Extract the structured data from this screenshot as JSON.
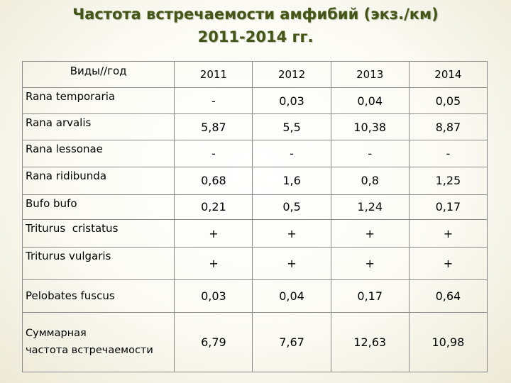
{
  "title": {
    "line1": "Частота встречаемости амфибий (экз./км)",
    "line2": "2011-2014 гг."
  },
  "table": {
    "header": {
      "species_label": "Виды//год",
      "years": [
        "2011",
        "2012",
        "2013",
        "2014"
      ]
    },
    "rows": [
      {
        "species": "Rana temporaria",
        "values": [
          "-",
          "0,03",
          "0,04",
          "0,05"
        ]
      },
      {
        "species": "Rana arvalis",
        "values": [
          "5,87",
          "5,5",
          "10,38",
          "8,87"
        ]
      },
      {
        "species": "Rana lessonae",
        "values": [
          "-",
          "-",
          "-",
          "-"
        ]
      },
      {
        "species": "Rana ridibunda",
        "values": [
          "0,68",
          "1,6",
          "0,8",
          "1,25"
        ]
      },
      {
        "species": "Bufo bufo",
        "values": [
          "0,21",
          "0,5",
          "1,24",
          "0,17"
        ]
      },
      {
        "species": "Triturus  cristatus",
        "values": [
          "+",
          "+",
          "+",
          "+"
        ]
      },
      {
        "species": "Triturus vulgaris",
        "values": [
          "+",
          "+",
          "+",
          "+"
        ]
      },
      {
        "species": "Pelobates fuscus",
        "values": [
          "0,03",
          "0,04",
          "0,17",
          "0,64"
        ]
      }
    ],
    "total": {
      "label_line1": "Суммарная",
      "label_line2": "частота встречаемости",
      "values": [
        "6,79",
        "7,67",
        "12,63",
        "10,98"
      ]
    }
  }
}
